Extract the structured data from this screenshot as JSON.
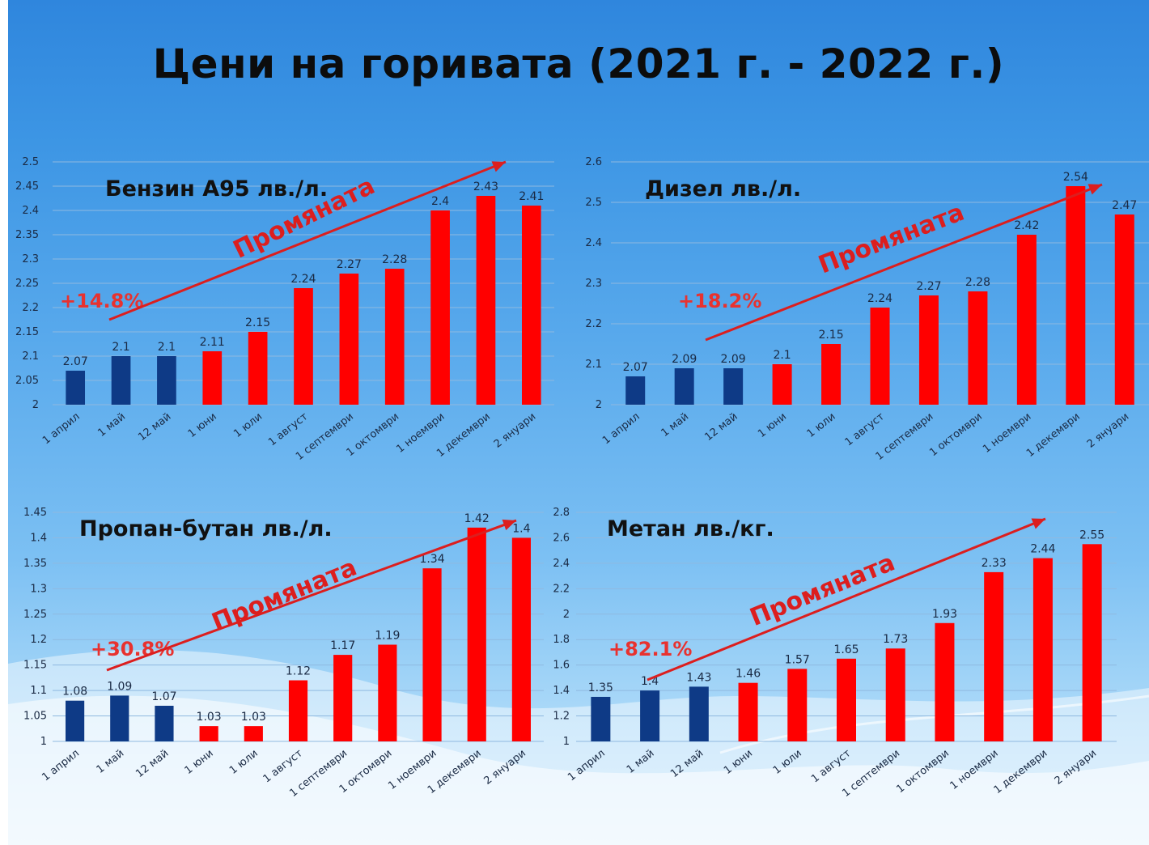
{
  "slide_title": "Цени на горивата (2021 г. - 2022 г.)",
  "trend_label": "Промяната",
  "colors": {
    "before": "#0e3a86",
    "after": "#ff0000",
    "arrow": "#dc1e1e",
    "percent": "#e8322f",
    "background_top": "#2f86dd",
    "background_bottom": "#cfe9fb"
  },
  "chart_data": [
    {
      "type": "bar",
      "title": "Бензин А95 лв./л.",
      "categories": [
        "1 април",
        "1 май",
        "12 май",
        "1 юни",
        "1 юли",
        "1 август",
        "1 септември",
        "1 октомври",
        "1 ноември",
        "1 декември",
        "2 януари"
      ],
      "values": [
        2.07,
        2.1,
        2.1,
        2.11,
        2.15,
        2.24,
        2.27,
        2.28,
        2.4,
        2.43,
        2.41
      ],
      "value_labels": [
        "2.07",
        "2.1",
        "2.1",
        "2.11",
        "2.15",
        "2.24",
        "2.27",
        "2.28",
        "2.4",
        "2.43",
        "2.41"
      ],
      "ylim": [
        2,
        2.5
      ],
      "yticks": [
        "2",
        "2.05",
        "2.1",
        "2.15",
        "2.2",
        "2.25",
        "2.3",
        "2.35",
        "2.4",
        "2.45",
        "2.5"
      ],
      "highlight_from_index": 3,
      "change_percent": "+14.8%",
      "grid": true,
      "xlabel": "",
      "ylabel": ""
    },
    {
      "type": "bar",
      "title": "Дизел лв./л.",
      "categories": [
        "1 април",
        "1 май",
        "12 май",
        "1 юни",
        "1 юли",
        "1 август",
        "1 септември",
        "1 октомври",
        "1 ноември",
        "1 декември",
        "2 януари"
      ],
      "values": [
        2.07,
        2.09,
        2.09,
        2.1,
        2.15,
        2.24,
        2.27,
        2.28,
        2.42,
        2.54,
        2.47
      ],
      "value_labels": [
        "2.07",
        "2.09",
        "2.09",
        "2.1",
        "2.15",
        "2.24",
        "2.27",
        "2.28",
        "2.42",
        "2.54",
        "2.47"
      ],
      "ylim": [
        2,
        2.6
      ],
      "yticks": [
        "2",
        "2.1",
        "2.2",
        "2.3",
        "2.4",
        "2.5",
        "2.6"
      ],
      "highlight_from_index": 3,
      "change_percent": "+18.2%",
      "grid": true,
      "xlabel": "",
      "ylabel": ""
    },
    {
      "type": "bar",
      "title": "Пропан-бутан лв./л.",
      "categories": [
        "1 април",
        "1 май",
        "12 май",
        "1 юни",
        "1 юли",
        "1 август",
        "1 септември",
        "1 октомври",
        "1 ноември",
        "1 декември",
        "2 януари"
      ],
      "values": [
        1.08,
        1.09,
        1.07,
        1.03,
        1.03,
        1.12,
        1.17,
        1.19,
        1.34,
        1.42,
        1.4
      ],
      "value_labels": [
        "1.08",
        "1.09",
        "1.07",
        "1.03",
        "1.03",
        "1.12",
        "1.17",
        "1.19",
        "1.34",
        "1.42",
        "1.4"
      ],
      "ylim": [
        1,
        1.45
      ],
      "yticks": [
        "1",
        "1.05",
        "1.1",
        "1.15",
        "1.2",
        "1.25",
        "1.3",
        "1.35",
        "1.4",
        "1.45"
      ],
      "highlight_from_index": 3,
      "change_percent": "+30.8%",
      "grid": true,
      "xlabel": "",
      "ylabel": ""
    },
    {
      "type": "bar",
      "title": "Метан лв./кг.",
      "categories": [
        "1 април",
        "1 май",
        "12 май",
        "1 юни",
        "1 юли",
        "1 август",
        "1 септември",
        "1 октомври",
        "1 ноември",
        "1 декември",
        "2 януари"
      ],
      "values": [
        1.35,
        1.4,
        1.43,
        1.46,
        1.57,
        1.65,
        1.73,
        1.93,
        2.33,
        2.44,
        2.55
      ],
      "value_labels": [
        "1.35",
        "1.4",
        "1.43",
        "1.46",
        "1.57",
        "1.65",
        "1.73",
        "1.93",
        "2.33",
        "2.44",
        "2.55"
      ],
      "ylim": [
        1,
        2.8
      ],
      "yticks": [
        "1",
        "1.2",
        "1.4",
        "1.6",
        "1.8",
        "2",
        "2.2",
        "2.4",
        "2.6",
        "2.8"
      ],
      "highlight_from_index": 3,
      "change_percent": "+82.1%",
      "grid": true,
      "xlabel": "",
      "ylabel": ""
    }
  ]
}
